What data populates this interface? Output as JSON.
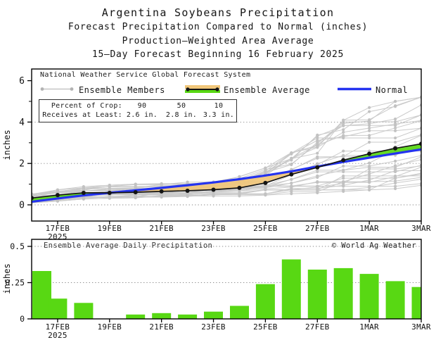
{
  "title": {
    "line1": "Argentina Soybeans Precipitation",
    "line2": "Forecast Precipitation Compared to Normal (inches)",
    "line3": "Production–Weighted Area Average",
    "line4": "15–Day Forecast Beginning 16 February 2025"
  },
  "top_chart": {
    "legend": {
      "source": "National Weather Service Global Forecast System",
      "members": "Ensemble Members",
      "average": "Ensemble Average",
      "normal": "Normal"
    },
    "stats": {
      "row1_label": "Percent of Crop:",
      "row2_label": "Receives at Least:",
      "pcts": [
        "90",
        "50",
        "10"
      ],
      "amts": [
        "2.6 in.",
        "2.8 in.",
        "3.3 in."
      ]
    },
    "ylabel": "inches",
    "year_label": "2025"
  },
  "bottom_chart": {
    "title": "Ensemble Average Daily Precipitation",
    "watermark": "© World Ag Weather",
    "ylabel": "inches",
    "year_label": "2025"
  },
  "colors": {
    "bar_green": "#58d813",
    "fill_green": "#58d813",
    "fill_orange": "#f0c67a",
    "normal_blue": "#2433f0",
    "member_gray": "#bdbdbd",
    "member_dot": "#b3b3b3",
    "avg_black": "#141414",
    "grid_gray": "#888888",
    "frame_black": "#000000"
  },
  "chart_data": [
    {
      "type": "line",
      "title": "Forecast cumulative precipitation compared to normal (inches)",
      "x": [
        "16FEB",
        "17FEB",
        "18FEB",
        "19FEB",
        "20FEB",
        "21FEB",
        "22FEB",
        "23FEB",
        "24FEB",
        "25FEB",
        "26FEB",
        "27FEB",
        "28FEB",
        "1MAR",
        "2MAR",
        "3MAR"
      ],
      "tick_idx": [
        1,
        3,
        5,
        7,
        9,
        11,
        13,
        15
      ],
      "tick_labels": [
        "17FEB",
        "19FEB",
        "21FEB",
        "23FEB",
        "25FEB",
        "27FEB",
        "1MAR",
        "3MAR"
      ],
      "ylabel": "inches",
      "ylim": [
        0,
        6.5
      ],
      "y_ticks": [
        0,
        2,
        4,
        6
      ],
      "y_minor_ticks": [
        1,
        3,
        5
      ],
      "grid": "dotted",
      "legend_position": "top-inside",
      "series": [
        {
          "name": "Ensemble Average",
          "values": [
            0.33,
            0.47,
            0.58,
            0.58,
            0.61,
            0.65,
            0.68,
            0.73,
            0.82,
            1.06,
            1.47,
            1.81,
            2.16,
            2.47,
            2.73,
            2.95
          ]
        },
        {
          "name": "Normal",
          "values": [
            0.15,
            0.31,
            0.46,
            0.58,
            0.7,
            0.82,
            0.95,
            1.08,
            1.24,
            1.42,
            1.62,
            1.85,
            2.07,
            2.28,
            2.48,
            2.68
          ]
        }
      ],
      "members_envelope": {
        "count": 30,
        "seed": 11,
        "lo": [
          0.1,
          0.18,
          0.28,
          0.32,
          0.34,
          0.36,
          0.38,
          0.4,
          0.43,
          0.47,
          0.52,
          0.58,
          0.65,
          0.72,
          0.78,
          0.85
        ],
        "hi": [
          0.55,
          0.75,
          0.88,
          0.95,
          1.0,
          1.05,
          1.1,
          1.22,
          1.45,
          1.95,
          2.9,
          3.6,
          4.4,
          4.7,
          5.0,
          5.2
        ]
      }
    },
    {
      "type": "bar",
      "title": "Ensemble Average Daily Precipitation",
      "categories": [
        "16FEB",
        "17FEB",
        "18FEB",
        "19FEB",
        "20FEB",
        "21FEB",
        "22FEB",
        "23FEB",
        "24FEB",
        "25FEB",
        "26FEB",
        "27FEB",
        "28FEB",
        "1MAR",
        "2MAR",
        "3MAR"
      ],
      "values": [
        0.33,
        0.14,
        0.11,
        0.0,
        0.03,
        0.04,
        0.03,
        0.05,
        0.09,
        0.24,
        0.41,
        0.34,
        0.35,
        0.31,
        0.26,
        0.22
      ],
      "tick_idx": [
        1,
        3,
        5,
        7,
        9,
        11,
        13,
        15
      ],
      "tick_labels": [
        "17FEB",
        "19FEB",
        "21FEB",
        "23FEB",
        "25FEB",
        "27FEB",
        "1MAR",
        "3MAR"
      ],
      "ylabel": "inches",
      "ylim": [
        0,
        0.55
      ],
      "y_ticks": [
        0,
        0.25,
        0.5
      ],
      "grid": "dotted"
    }
  ]
}
